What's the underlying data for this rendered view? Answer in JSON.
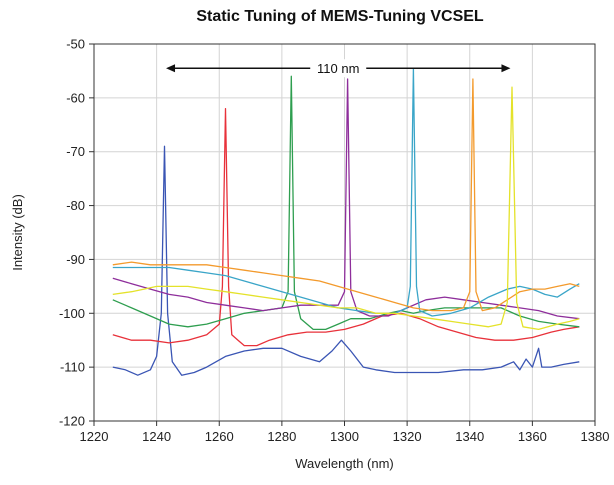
{
  "chart_data": {
    "type": "line",
    "title": "Static Tuning of MEMS-Tuning VCSEL",
    "xlabel": "Wavelength (nm)",
    "ylabel": "Intensity (dB)",
    "xlim": [
      1220,
      1380
    ],
    "ylim": [
      -120,
      -50
    ],
    "xticks": [
      1220,
      1240,
      1260,
      1280,
      1300,
      1320,
      1340,
      1360,
      1380
    ],
    "yticks": [
      -50,
      -60,
      -70,
      -80,
      -90,
      -100,
      -110,
      -120
    ],
    "grid": true,
    "annotation": {
      "text": "110 nm",
      "x_start": 1243,
      "x_end": 1353,
      "y": -54.5
    },
    "series": [
      {
        "color": "#3a55b4",
        "peak_wavelength": 1242.5,
        "peak_intensity": -69,
        "points": [
          [
            1226,
            -110
          ],
          [
            1230,
            -110.5
          ],
          [
            1234,
            -111.5
          ],
          [
            1238,
            -110.5
          ],
          [
            1240,
            -108
          ],
          [
            1241.5,
            -100
          ],
          [
            1242.5,
            -69
          ],
          [
            1243.5,
            -100
          ],
          [
            1245,
            -109
          ],
          [
            1248,
            -111.5
          ],
          [
            1252,
            -111
          ],
          [
            1256,
            -110
          ],
          [
            1262,
            -108
          ],
          [
            1268,
            -107
          ],
          [
            1274,
            -106.5
          ],
          [
            1280,
            -106.5
          ],
          [
            1286,
            -108
          ],
          [
            1292,
            -109
          ],
          [
            1296,
            -107
          ],
          [
            1299,
            -105
          ],
          [
            1302,
            -107
          ],
          [
            1306,
            -110
          ],
          [
            1310,
            -110.5
          ],
          [
            1316,
            -111
          ],
          [
            1322,
            -111
          ],
          [
            1330,
            -111
          ],
          [
            1338,
            -110.5
          ],
          [
            1344,
            -110.5
          ],
          [
            1350,
            -110
          ],
          [
            1354,
            -109
          ],
          [
            1356,
            -110.5
          ],
          [
            1358,
            -108.5
          ],
          [
            1360,
            -110
          ],
          [
            1362,
            -106.5
          ],
          [
            1363,
            -110
          ],
          [
            1366,
            -110
          ],
          [
            1370,
            -109.5
          ],
          [
            1375,
            -109
          ]
        ]
      },
      {
        "color": "#e8313a",
        "peak_wavelength": 1262,
        "peak_intensity": -62,
        "points": [
          [
            1226,
            -104
          ],
          [
            1232,
            -105
          ],
          [
            1238,
            -105
          ],
          [
            1244,
            -105.5
          ],
          [
            1250,
            -105
          ],
          [
            1256,
            -104
          ],
          [
            1260,
            -102
          ],
          [
            1261,
            -95
          ],
          [
            1262,
            -62
          ],
          [
            1263,
            -95
          ],
          [
            1264,
            -104
          ],
          [
            1266,
            -105
          ],
          [
            1268,
            -106
          ],
          [
            1272,
            -106
          ],
          [
            1276,
            -105
          ],
          [
            1282,
            -104
          ],
          [
            1288,
            -103.5
          ],
          [
            1294,
            -103.5
          ],
          [
            1300,
            -103
          ],
          [
            1306,
            -102
          ],
          [
            1312,
            -100.5
          ],
          [
            1318,
            -100
          ],
          [
            1324,
            -101
          ],
          [
            1330,
            -102.5
          ],
          [
            1336,
            -103.5
          ],
          [
            1342,
            -104.5
          ],
          [
            1348,
            -105
          ],
          [
            1354,
            -105
          ],
          [
            1360,
            -104.5
          ],
          [
            1366,
            -103.5
          ],
          [
            1370,
            -103
          ],
          [
            1375,
            -102.5
          ]
        ]
      },
      {
        "color": "#2e9e4f",
        "peak_wavelength": 1283,
        "peak_intensity": -56,
        "points": [
          [
            1226,
            -97.5
          ],
          [
            1232,
            -99
          ],
          [
            1238,
            -100.5
          ],
          [
            1244,
            -102
          ],
          [
            1250,
            -102.5
          ],
          [
            1256,
            -102
          ],
          [
            1262,
            -101
          ],
          [
            1268,
            -100
          ],
          [
            1274,
            -99.5
          ],
          [
            1280,
            -99
          ],
          [
            1282,
            -96
          ],
          [
            1283,
            -56
          ],
          [
            1284,
            -96
          ],
          [
            1286,
            -101
          ],
          [
            1290,
            -103
          ],
          [
            1294,
            -103
          ],
          [
            1298,
            -102
          ],
          [
            1302,
            -101
          ],
          [
            1308,
            -101
          ],
          [
            1314,
            -100
          ],
          [
            1318,
            -99.5
          ],
          [
            1322,
            -100
          ],
          [
            1326,
            -99.5
          ],
          [
            1332,
            -99
          ],
          [
            1338,
            -99
          ],
          [
            1344,
            -99
          ],
          [
            1350,
            -99
          ],
          [
            1356,
            -100.5
          ],
          [
            1362,
            -101.5
          ],
          [
            1368,
            -102
          ],
          [
            1375,
            -102.5
          ]
        ]
      },
      {
        "color": "#8e2e9b",
        "peak_wavelength": 1301,
        "peak_intensity": -56.5,
        "points": [
          [
            1226,
            -93.5
          ],
          [
            1232,
            -94.5
          ],
          [
            1238,
            -95.5
          ],
          [
            1244,
            -96.5
          ],
          [
            1250,
            -97
          ],
          [
            1256,
            -98
          ],
          [
            1262,
            -98.5
          ],
          [
            1268,
            -99
          ],
          [
            1274,
            -99.5
          ],
          [
            1280,
            -99
          ],
          [
            1286,
            -98.5
          ],
          [
            1292,
            -98.5
          ],
          [
            1298,
            -98.5
          ],
          [
            1300,
            -96
          ],
          [
            1301,
            -56.5
          ],
          [
            1302,
            -96
          ],
          [
            1304,
            -99.5
          ],
          [
            1308,
            -100.5
          ],
          [
            1314,
            -100.5
          ],
          [
            1320,
            -99
          ],
          [
            1326,
            -97.5
          ],
          [
            1332,
            -97
          ],
          [
            1338,
            -97.5
          ],
          [
            1344,
            -98
          ],
          [
            1350,
            -98.5
          ],
          [
            1356,
            -99
          ],
          [
            1362,
            -99.5
          ],
          [
            1368,
            -100.5
          ],
          [
            1375,
            -101
          ]
        ]
      },
      {
        "color": "#3aa5c8",
        "peak_wavelength": 1322,
        "peak_intensity": -54.5,
        "points": [
          [
            1226,
            -91.5
          ],
          [
            1232,
            -91.5
          ],
          [
            1238,
            -91.5
          ],
          [
            1244,
            -91.5
          ],
          [
            1250,
            -92
          ],
          [
            1256,
            -92.5
          ],
          [
            1262,
            -93
          ],
          [
            1268,
            -94
          ],
          [
            1274,
            -95
          ],
          [
            1280,
            -96
          ],
          [
            1286,
            -97
          ],
          [
            1292,
            -98
          ],
          [
            1298,
            -99
          ],
          [
            1304,
            -99.5
          ],
          [
            1310,
            -100
          ],
          [
            1316,
            -100
          ],
          [
            1320,
            -99
          ],
          [
            1321,
            -95
          ],
          [
            1322,
            -54.5
          ],
          [
            1323,
            -95
          ],
          [
            1324,
            -99.5
          ],
          [
            1328,
            -100.5
          ],
          [
            1334,
            -100
          ],
          [
            1340,
            -99
          ],
          [
            1346,
            -97
          ],
          [
            1352,
            -95.5
          ],
          [
            1356,
            -95
          ],
          [
            1360,
            -95.5
          ],
          [
            1364,
            -96.5
          ],
          [
            1368,
            -97
          ],
          [
            1372,
            -95.5
          ],
          [
            1375,
            -94.5
          ]
        ]
      },
      {
        "color": "#f39a2c",
        "peak_wavelength": 1341,
        "peak_intensity": -56.5,
        "points": [
          [
            1226,
            -91
          ],
          [
            1232,
            -90.5
          ],
          [
            1238,
            -91
          ],
          [
            1244,
            -91
          ],
          [
            1250,
            -91
          ],
          [
            1256,
            -91
          ],
          [
            1262,
            -91.5
          ],
          [
            1268,
            -92
          ],
          [
            1274,
            -92.5
          ],
          [
            1280,
            -93
          ],
          [
            1286,
            -93.5
          ],
          [
            1292,
            -94
          ],
          [
            1298,
            -95
          ],
          [
            1304,
            -96
          ],
          [
            1310,
            -97
          ],
          [
            1316,
            -98
          ],
          [
            1322,
            -99
          ],
          [
            1328,
            -99.5
          ],
          [
            1334,
            -99.5
          ],
          [
            1338,
            -99
          ],
          [
            1340,
            -96
          ],
          [
            1341,
            -56.5
          ],
          [
            1342,
            -96
          ],
          [
            1344,
            -99.5
          ],
          [
            1348,
            -99
          ],
          [
            1352,
            -97.5
          ],
          [
            1356,
            -96
          ],
          [
            1360,
            -95.5
          ],
          [
            1364,
            -95.5
          ],
          [
            1368,
            -95
          ],
          [
            1372,
            -94.5
          ],
          [
            1375,
            -95
          ]
        ]
      },
      {
        "color": "#e4e22a",
        "peak_wavelength": 1353.5,
        "peak_intensity": -58,
        "points": [
          [
            1226,
            -96.5
          ],
          [
            1232,
            -96
          ],
          [
            1236,
            -95.5
          ],
          [
            1240,
            -95
          ],
          [
            1244,
            -95
          ],
          [
            1250,
            -95
          ],
          [
            1256,
            -95.5
          ],
          [
            1262,
            -96
          ],
          [
            1268,
            -96.5
          ],
          [
            1274,
            -97
          ],
          [
            1280,
            -97.5
          ],
          [
            1286,
            -98
          ],
          [
            1292,
            -98.5
          ],
          [
            1298,
            -99
          ],
          [
            1304,
            -99
          ],
          [
            1310,
            -100
          ],
          [
            1316,
            -100
          ],
          [
            1322,
            -100.5
          ],
          [
            1328,
            -101
          ],
          [
            1334,
            -101.5
          ],
          [
            1340,
            -102
          ],
          [
            1346,
            -102.5
          ],
          [
            1350,
            -102
          ],
          [
            1352,
            -98
          ],
          [
            1353.5,
            -58
          ],
          [
            1355,
            -98
          ],
          [
            1357,
            -102.5
          ],
          [
            1362,
            -103
          ],
          [
            1368,
            -102
          ],
          [
            1372,
            -101.5
          ],
          [
            1375,
            -101
          ]
        ]
      }
    ]
  }
}
